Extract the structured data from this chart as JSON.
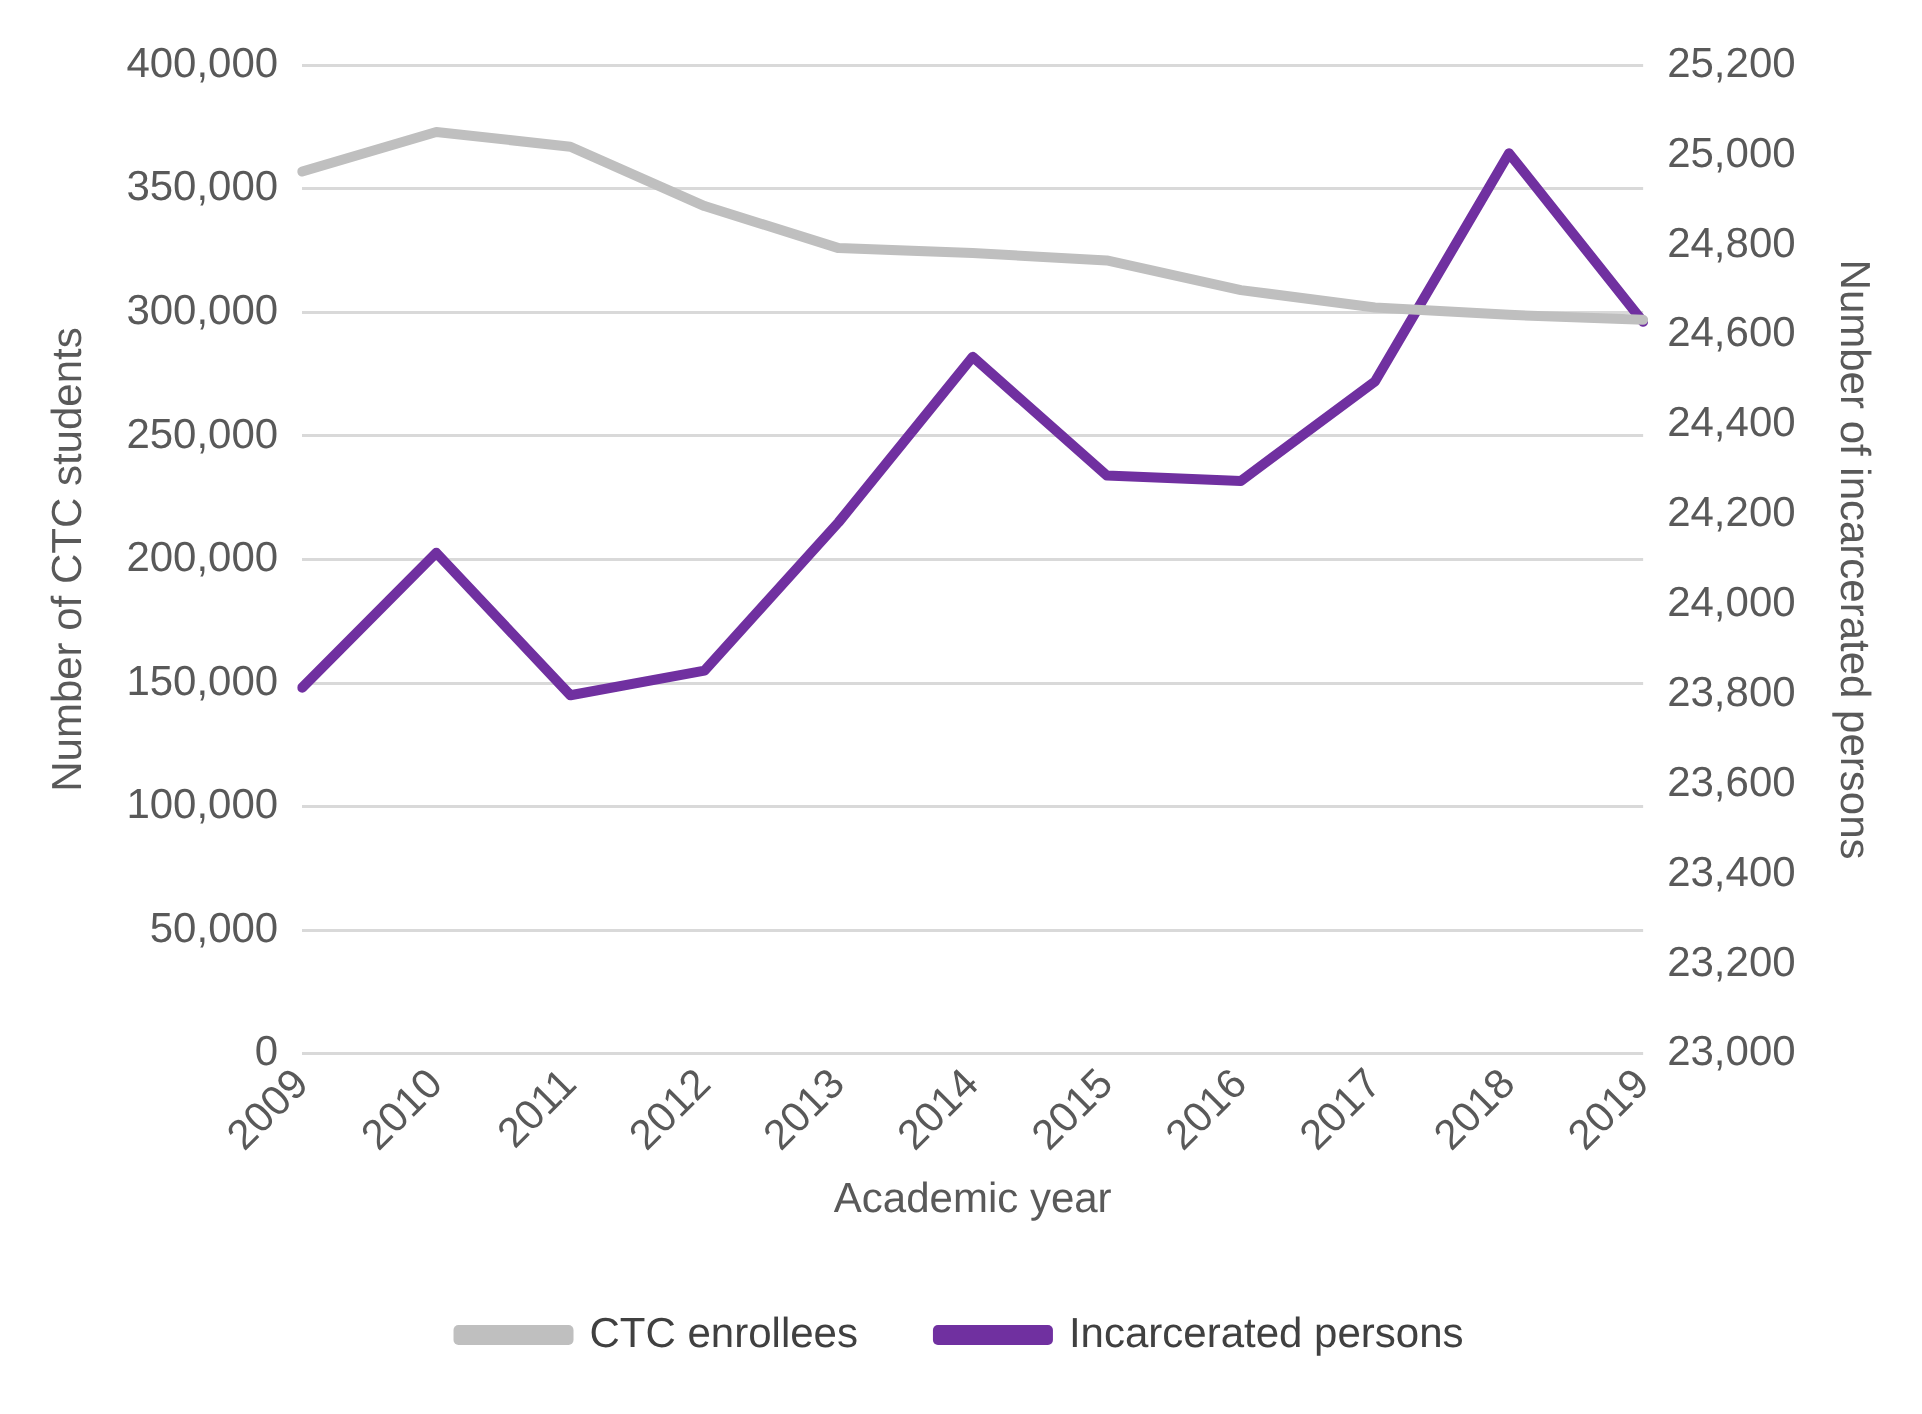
{
  "chart_data": {
    "type": "line",
    "xlabel": "Academic year",
    "ylabel": "Number of CTC students",
    "y2label": "Number of incarcerated persons",
    "categories": [
      "2009",
      "2010",
      "2011",
      "2012",
      "2013",
      "2014",
      "2015",
      "2016",
      "2017",
      "2018",
      "2019"
    ],
    "series": [
      {
        "name": "CTC enrollees",
        "color": "#bfbfbf",
        "values": [
          357000,
          373000,
          367000,
          343000,
          326000,
          324000,
          321000,
          309000,
          302000,
          299000,
          297000
        ]
      },
      {
        "name": "Incarcerated persons",
        "color": "#7030a0",
        "axis": "y2",
        "values": [
          23815,
          24115,
          23798,
          23853,
          24183,
          24551,
          24287,
          24275,
          24496,
          25004,
          24629
        ]
      }
    ],
    "ylim": [
      0,
      400000
    ],
    "yticks": [
      0,
      {
        "value": 50000,
        "label": "50,000"
      },
      {
        "value": 100000,
        "label": "100,000"
      },
      {
        "value": 150000,
        "label": "150,000"
      },
      {
        "value": 200000,
        "label": "200,000"
      },
      {
        "value": 250000,
        "label": "250,000"
      },
      {
        "value": 300000,
        "label": "300,000"
      },
      {
        "value": 350000,
        "label": "350,000"
      },
      {
        "value": 400000,
        "label": "400,000"
      }
    ],
    "y2lim": [
      23000,
      25200
    ],
    "y2ticks": [
      {
        "value": 23000,
        "label": "23,000"
      },
      {
        "value": 23200,
        "label": "23,200"
      },
      {
        "value": 23400,
        "label": "23,400"
      },
      {
        "value": 23600,
        "label": "23,600"
      },
      {
        "value": 23800,
        "label": "23,800"
      },
      {
        "value": 24000,
        "label": "24,000"
      },
      {
        "value": 24200,
        "label": "24,200"
      },
      {
        "value": 24400,
        "label": "24,400"
      },
      {
        "value": 24600,
        "label": "24,600"
      },
      {
        "value": 24800,
        "label": "24,800"
      },
      {
        "value": 25000,
        "label": "25,000"
      },
      {
        "value": 25200,
        "label": "25,200"
      }
    ],
    "grid": "y",
    "legend": "bottom",
    "marker": "none",
    "line_style": "solid"
  }
}
